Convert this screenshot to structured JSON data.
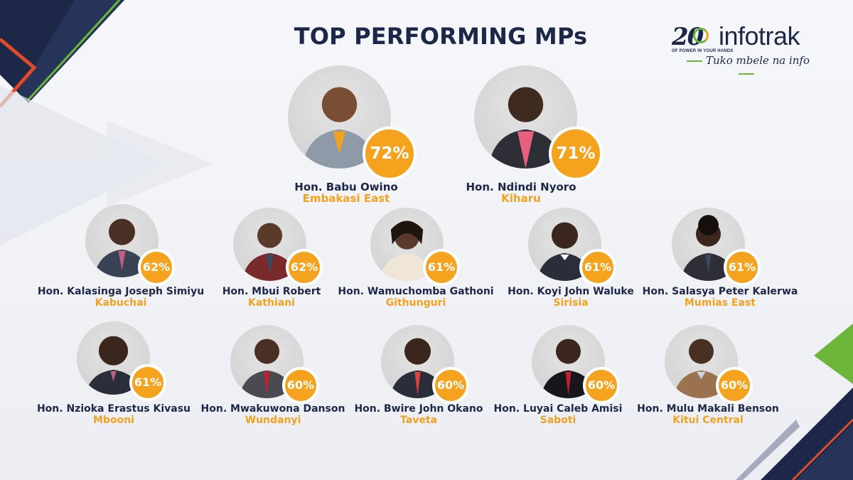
{
  "title": "TOP PERFORMING MPs",
  "logo": {
    "number": "20",
    "brand": "infotrak",
    "small_text": "OF POWER IN YOUR HANDS",
    "tagline": "Tuko mbele na info",
    "icon": "infotrak-20-years-logo"
  },
  "colors": {
    "navy": "#1d2848",
    "orange": "#f5a31e",
    "green": "#6bb53a",
    "red": "#e04a2a"
  },
  "mps": [
    {
      "name": "Hon. Babu Owino",
      "constituency": "Embakasi East",
      "score": "72%"
    },
    {
      "name": "Hon. Ndindi Nyoro",
      "constituency": "Kiharu",
      "score": "71%"
    },
    {
      "name": "Hon. Kalasinga Joseph Simiyu",
      "constituency": "Kabuchai",
      "score": "62%"
    },
    {
      "name": "Hon. Mbui Robert",
      "constituency": "Kathiani",
      "score": "62%"
    },
    {
      "name": "Hon. Wamuchomba Gathoni",
      "constituency": "Githunguri",
      "score": "61%"
    },
    {
      "name": "Hon. Koyi John Waluke",
      "constituency": "Sirisia",
      "score": "61%"
    },
    {
      "name": "Hon. Salasya Peter Kalerwa",
      "constituency": "Mumias East",
      "score": "61%"
    },
    {
      "name": "Hon. Nzioka Erastus Kivasu",
      "constituency": "Mbooni",
      "score": "61%"
    },
    {
      "name": "Hon. Mwakuwona Danson",
      "constituency": "Wundanyi",
      "score": "60%"
    },
    {
      "name": "Hon. Bwire John Okano",
      "constituency": "Taveta",
      "score": "60%"
    },
    {
      "name": "Hon. Luyai Caleb Amisi",
      "constituency": "Saboti",
      "score": "60%"
    },
    {
      "name": "Hon. Mulu Makali Benson",
      "constituency": "Kitui Central",
      "score": "60%"
    }
  ]
}
